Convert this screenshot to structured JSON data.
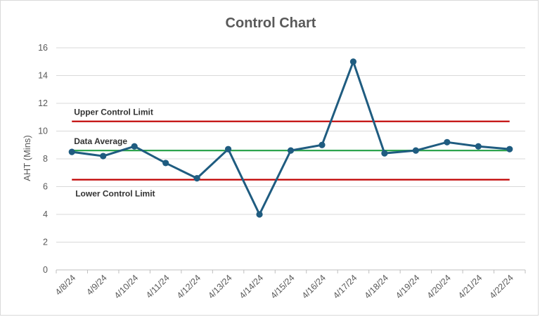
{
  "chart_data": {
    "type": "line",
    "title": "Control Chart",
    "xlabel": "",
    "ylabel": "AHT (Mins)",
    "ylim": [
      0,
      16
    ],
    "yticks": [
      0,
      2,
      4,
      6,
      8,
      10,
      12,
      14,
      16
    ],
    "grid": true,
    "categories": [
      "4/8/24",
      "4/9/24",
      "4/10/24",
      "4/11/24",
      "4/12/24",
      "4/13/24",
      "4/14/24",
      "4/15/24",
      "4/16/24",
      "4/17/24",
      "4/18/24",
      "4/19/24",
      "4/20/24",
      "4/21/24",
      "4/22/24"
    ],
    "values": [
      8.5,
      8.2,
      8.9,
      7.7,
      6.6,
      8.7,
      4.0,
      8.6,
      9.0,
      15.0,
      8.4,
      8.6,
      9.2,
      8.9,
      8.7
    ],
    "reference_lines": [
      {
        "label": "Upper Control Limit",
        "value": 10.7,
        "color": "#c00000"
      },
      {
        "label": "Data Average",
        "value": 8.6,
        "color": "#2ea44f"
      },
      {
        "label": "Lower Control Limit",
        "value": 6.5,
        "color": "#c00000"
      }
    ],
    "series_color": "#1f5c80"
  }
}
